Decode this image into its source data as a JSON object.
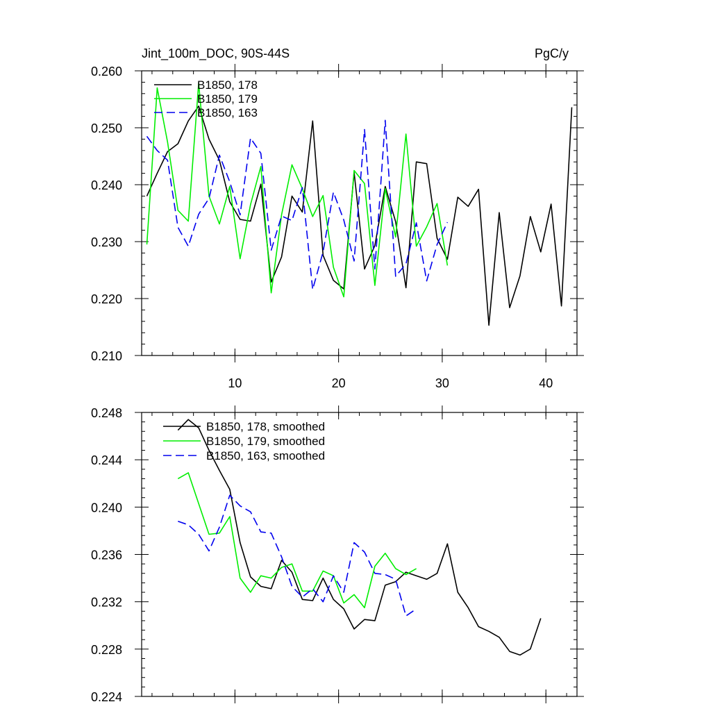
{
  "chart_data": [
    {
      "type": "line",
      "title_left": "Jint_100m_DOC, 90S-44S",
      "title_right": "PgC/y",
      "xlabel": "",
      "ylabel": "",
      "xlim": [
        1,
        43
      ],
      "ylim": [
        0.21,
        0.26
      ],
      "xticks": [
        10,
        20,
        30,
        40
      ],
      "xtick_labels": [
        "10",
        "20",
        "30",
        "40"
      ],
      "yticks": [
        0.21,
        0.22,
        0.23,
        0.24,
        0.25,
        0.26
      ],
      "ytick_labels": [
        "0.210",
        "0.220",
        "0.230",
        "0.240",
        "0.250",
        "0.260"
      ],
      "legend_position": "top-left",
      "series": [
        {
          "name": "B1850, 178",
          "color": "#000000",
          "dash": "solid",
          "x": [
            1.5,
            2.5,
            3.5,
            4.5,
            5.5,
            6.5,
            7.5,
            8.5,
            9.5,
            10.5,
            11.5,
            12.5,
            13.5,
            14.5,
            15.5,
            16.5,
            17.5,
            18.5,
            19.5,
            20.5,
            21.5,
            22.5,
            23.5,
            24.5,
            25.5,
            26.5,
            27.5,
            28.5,
            29.5,
            30.5,
            31.5,
            32.5,
            33.5,
            34.5,
            35.5,
            36.5,
            37.5,
            38.5,
            39.5,
            40.5,
            41.5,
            42.5
          ],
          "values": [
            0.238,
            0.242,
            0.2458,
            0.2472,
            0.2512,
            0.2538,
            0.248,
            0.2443,
            0.237,
            0.2339,
            0.2336,
            0.2401,
            0.2229,
            0.2273,
            0.238,
            0.2352,
            0.2512,
            0.2276,
            0.2232,
            0.2217,
            0.2422,
            0.2252,
            0.2293,
            0.2397,
            0.2335,
            0.2219,
            0.244,
            0.2437,
            0.2306,
            0.2269,
            0.2378,
            0.2362,
            0.2392,
            0.2153,
            0.2351,
            0.2184,
            0.224,
            0.2344,
            0.2282,
            0.2366,
            0.2187,
            0.2536
          ]
        },
        {
          "name": "B1850, 179",
          "color": "#00ee00",
          "dash": "solid",
          "x": [
            1.5,
            2.5,
            3.5,
            4.5,
            5.5,
            6.5,
            7.5,
            8.5,
            9.5,
            10.5,
            11.5,
            12.5,
            13.5,
            14.5,
            15.5,
            16.5,
            17.5,
            18.5,
            19.5,
            20.5,
            21.5,
            22.5,
            23.5,
            24.5,
            25.5,
            26.5,
            27.5,
            28.5,
            29.5,
            30.5
          ],
          "values": [
            0.2295,
            0.257,
            0.2475,
            0.2355,
            0.2336,
            0.2578,
            0.238,
            0.2331,
            0.2397,
            0.227,
            0.2365,
            0.2432,
            0.221,
            0.2347,
            0.2435,
            0.2393,
            0.2344,
            0.2381,
            0.2255,
            0.2203,
            0.2425,
            0.2402,
            0.2223,
            0.2393,
            0.2308,
            0.2489,
            0.2292,
            0.2326,
            0.2367,
            0.2258
          ]
        },
        {
          "name": "B1850, 163",
          "color": "#0000ee",
          "dash": "dashed",
          "x": [
            1.5,
            2.5,
            3.5,
            4.5,
            5.5,
            6.5,
            7.5,
            8.5,
            9.5,
            10.5,
            11.5,
            12.5,
            13.5,
            14.5,
            15.5,
            16.5,
            17.5,
            18.5,
            19.5,
            20.5,
            21.5,
            22.5,
            23.5,
            24.5,
            25.5,
            26.5,
            27.5,
            28.5,
            29.5,
            30.5
          ],
          "values": [
            0.2485,
            0.246,
            0.2443,
            0.2325,
            0.2292,
            0.2348,
            0.2376,
            0.2452,
            0.2405,
            0.2347,
            0.2482,
            0.2455,
            0.2285,
            0.2345,
            0.2337,
            0.2395,
            0.2216,
            0.2282,
            0.2387,
            0.2338,
            0.2266,
            0.2497,
            0.2252,
            0.2513,
            0.2239,
            0.2261,
            0.2333,
            0.2231,
            0.2295,
            0.2334
          ]
        }
      ]
    },
    {
      "type": "line",
      "title_left": "",
      "title_right": "",
      "xlabel": "",
      "ylabel": "",
      "xlim": [
        1,
        43
      ],
      "ylim": [
        0.224,
        0.248
      ],
      "xticks": [
        10,
        20,
        30,
        40
      ],
      "xtick_labels": [],
      "yticks": [
        0.224,
        0.228,
        0.232,
        0.236,
        0.24,
        0.244,
        0.248
      ],
      "ytick_labels": [
        "0.224",
        "0.228",
        "0.232",
        "0.236",
        "0.240",
        "0.244",
        "0.248"
      ],
      "legend_position": "top-left",
      "series": [
        {
          "name": "B1850, 178, smoothed",
          "color": "#000000",
          "dash": "solid",
          "x": [
            4.5,
            5.5,
            6.5,
            7.5,
            8.5,
            9.5,
            10.5,
            11.5,
            12.5,
            13.5,
            14.5,
            15.5,
            16.5,
            17.5,
            18.5,
            19.5,
            20.5,
            21.5,
            22.5,
            23.5,
            24.5,
            25.5,
            26.5,
            27.5,
            28.5,
            29.5,
            30.5,
            31.5,
            32.5,
            33.5,
            34.5,
            35.5,
            36.5,
            37.5,
            38.5,
            39.5
          ],
          "values": [
            0.2465,
            0.2474,
            0.2467,
            0.2448,
            0.2431,
            0.2415,
            0.237,
            0.2341,
            0.2333,
            0.2331,
            0.2355,
            0.2345,
            0.2322,
            0.2321,
            0.234,
            0.2322,
            0.2314,
            0.2297,
            0.2305,
            0.2304,
            0.2334,
            0.2337,
            0.2345,
            0.2342,
            0.2339,
            0.2344,
            0.2369,
            0.2328,
            0.2315,
            0.2299,
            0.2295,
            0.229,
            0.2278,
            0.2275,
            0.228,
            0.2306
          ]
        },
        {
          "name": "B1850, 179, smoothed",
          "color": "#00ee00",
          "dash": "solid",
          "x": [
            4.5,
            5.5,
            6.5,
            7.5,
            8.5,
            9.5,
            10.5,
            11.5,
            12.5,
            13.5,
            14.5,
            15.5,
            16.5,
            17.5,
            18.5,
            19.5,
            20.5,
            21.5,
            22.5,
            23.5,
            24.5,
            25.5,
            26.5,
            27.5
          ],
          "values": [
            0.2424,
            0.2429,
            0.2403,
            0.2377,
            0.2378,
            0.2392,
            0.234,
            0.2328,
            0.2342,
            0.234,
            0.2349,
            0.2352,
            0.2329,
            0.2329,
            0.2346,
            0.2342,
            0.2319,
            0.2326,
            0.2315,
            0.235,
            0.2361,
            0.2348,
            0.2343,
            0.2348
          ]
        },
        {
          "name": "B1850, 163, smoothed",
          "color": "#0000ee",
          "dash": "dashed",
          "x": [
            4.5,
            5.5,
            6.5,
            7.5,
            8.5,
            9.5,
            10.5,
            11.5,
            12.5,
            13.5,
            14.5,
            15.5,
            16.5,
            17.5,
            18.5,
            19.5,
            20.5,
            21.5,
            22.5,
            23.5,
            24.5,
            25.5,
            26.5,
            27.5
          ],
          "values": [
            0.2388,
            0.2385,
            0.2377,
            0.2363,
            0.2383,
            0.241,
            0.2401,
            0.2396,
            0.2379,
            0.2378,
            0.2358,
            0.2333,
            0.2324,
            0.2331,
            0.232,
            0.2342,
            0.2328,
            0.237,
            0.2362,
            0.2344,
            0.2343,
            0.2339,
            0.2308,
            0.2314
          ]
        }
      ]
    }
  ]
}
